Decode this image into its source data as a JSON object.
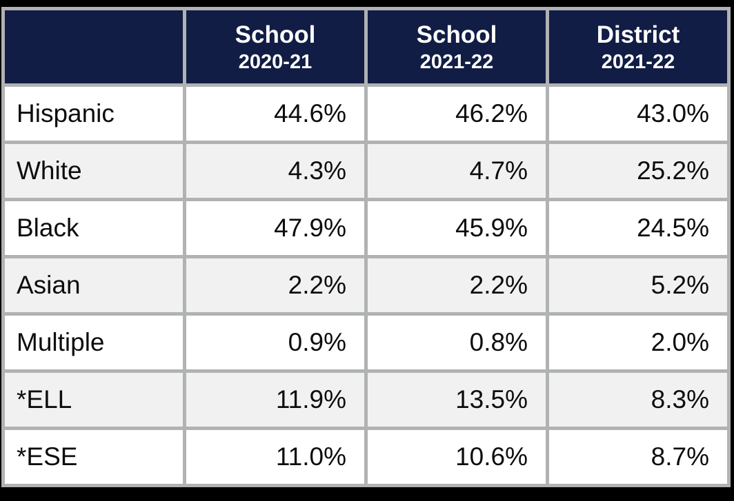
{
  "colors": {
    "header_bg": "#111d45",
    "header_text": "#ffffff",
    "grid_border": "#b0b2b3",
    "row_alt_bg": "#f1f1f2",
    "row_bg": "#ffffff",
    "body_text": "#0d0d0d",
    "frame_bg": "#000000"
  },
  "chart_data": {
    "type": "table",
    "title": "School demographics comparison table",
    "columns": [
      "",
      "School 2020-21",
      "School 2021-22",
      "District 2021-22"
    ],
    "rows": [
      [
        "Hispanic",
        "44.6%",
        "46.2%",
        "43.0%"
      ],
      [
        "White",
        "4.3%",
        "4.7%",
        "25.2%"
      ],
      [
        "Black",
        "47.9%",
        "45.9%",
        "24.5%"
      ],
      [
        "Asian",
        "2.2%",
        "2.2%",
        "5.2%"
      ],
      [
        "Multiple",
        "0.9%",
        "0.8%",
        "2.0%"
      ],
      [
        "*ELL",
        "11.9%",
        "13.5%",
        "8.3%"
      ],
      [
        "*ESE",
        "11.0%",
        "10.6%",
        "8.7%"
      ]
    ]
  },
  "table": {
    "header": [
      {
        "line1": "",
        "line2": ""
      },
      {
        "line1": "School",
        "line2": "2020-21"
      },
      {
        "line1": "School",
        "line2": "2021-22"
      },
      {
        "line1": "District",
        "line2": "2021-22"
      }
    ],
    "rows": [
      {
        "label": "Hispanic",
        "values": [
          "44.6%",
          "46.2%",
          "43.0%"
        ]
      },
      {
        "label": "White",
        "values": [
          "4.3%",
          "4.7%",
          "25.2%"
        ]
      },
      {
        "label": "Black",
        "values": [
          "47.9%",
          "45.9%",
          "24.5%"
        ]
      },
      {
        "label": "Asian",
        "values": [
          "2.2%",
          "2.2%",
          "5.2%"
        ]
      },
      {
        "label": "Multiple",
        "values": [
          "0.9%",
          "0.8%",
          "2.0%"
        ]
      },
      {
        "label": "*ELL",
        "values": [
          "11.9%",
          "13.5%",
          "8.3%"
        ]
      },
      {
        "label": "*ESE",
        "values": [
          "11.0%",
          "10.6%",
          "8.7%"
        ]
      }
    ]
  }
}
